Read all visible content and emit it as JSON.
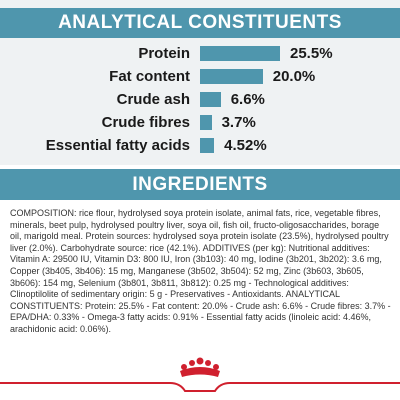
{
  "headers": {
    "analytical": "ANALYTICAL CONSTITUENTS",
    "ingredients": "INGREDIENTS"
  },
  "chart_data": {
    "type": "bar",
    "categories": [
      "Protein",
      "Fat content",
      "Crude ash",
      "Crude fibres",
      "Essential fatty acids"
    ],
    "values": [
      25.5,
      20.0,
      6.6,
      3.7,
      4.52
    ],
    "value_labels": [
      "25.5%",
      "20.0%",
      "6.6%",
      "3.7%",
      "4.52%"
    ],
    "title": "ANALYTICAL CONSTITUENTS",
    "xlabel": "",
    "ylabel": "",
    "ylim": [
      0,
      25.5
    ]
  },
  "ingredients_text": "COMPOSITION: rice flour, hydrolysed soya protein isolate, animal fats, rice, vegetable fibres, minerals, beet pulp, hydrolysed poultry liver, soya oil, fish oil, fructo-oligosaccharides, borage oil, marigold meal. Protein sources: hydrolysed soya protein isolate (23.5%), hydrolysed poultry liver (2.0%). Carbohydrate source: rice (42.1%). ADDITIVES (per kg): Nutritional additives: Vitamin A: 29500 IU, Vitamin D3: 800 IU, Iron (3b103): 40 mg, Iodine (3b201, 3b202): 3.6 mg, Copper (3b405, 3b406): 15 mg, Manganese (3b502, 3b504): 52 mg, Zinc (3b603, 3b605, 3b606): 154 mg, Selenium (3b801, 3b811, 3b812): 0.25 mg - Technological additives: Clinoptilolite of sedimentary origin: 5 g - Preservatives - Antioxidants. ANALYTICAL CONSTITUENTS: Protein: 25.5% - Fat content: 20.0% - Crude ash: 6.6% - Crude fibres: 3.7% - EPA/DHA: 0.33% - Omega-3 fatty acids: 0.91% - Essential fatty acids (linoleic acid: 4.46%, arachidonic acid: 0.06%).",
  "colors": {
    "accent": "#4f96ad",
    "panel_bg": "#eff2f3",
    "brand_red": "#d0202e"
  }
}
